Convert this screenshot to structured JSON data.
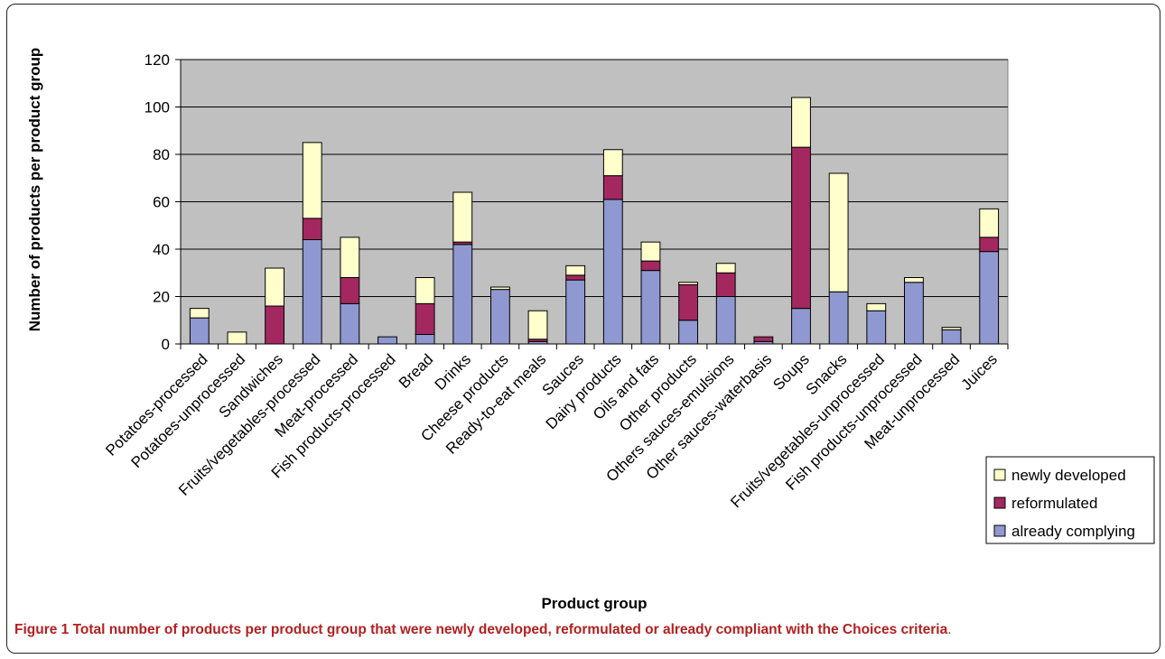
{
  "chart_data": {
    "type": "bar",
    "stacked": true,
    "categories": [
      "Potatoes-processed",
      "Potatoes-unprocessed",
      "Sandwiches",
      "Fruits/vegetables-processed",
      "Meat-processed",
      "Fish products-processed",
      "Bread",
      "Drinks",
      "Cheese products",
      "Ready-to-eat meals",
      "Sauces",
      "Dairy products",
      "Oils and fats",
      "Other products",
      "Others sauces-emulsions",
      "Other sauces-waterbasis",
      "Soups",
      "Snacks",
      "Fruits/vegetables-unprocessed",
      "Fish products-unprocessed",
      "Meat-unprocessed",
      "Juices"
    ],
    "series": [
      {
        "name": "already complying",
        "color": "#8f98d0",
        "values": [
          11,
          0,
          0,
          44,
          17,
          3,
          4,
          42,
          23,
          1,
          27,
          61,
          31,
          10,
          20,
          1,
          15,
          22,
          14,
          26,
          6,
          39
        ]
      },
      {
        "name": "reformulated",
        "color": "#a3285f",
        "values": [
          0,
          0,
          16,
          9,
          11,
          0,
          13,
          1,
          0,
          1,
          2,
          10,
          4,
          15,
          10,
          2,
          68,
          0,
          0,
          0,
          0,
          6
        ]
      },
      {
        "name": "newly developed",
        "color": "#ffffcc",
        "values": [
          4,
          5,
          16,
          32,
          17,
          0,
          11,
          21,
          1,
          12,
          4,
          11,
          8,
          1,
          4,
          0,
          21,
          50,
          3,
          2,
          1,
          12
        ]
      }
    ],
    "xlabel": "Product group",
    "ylabel": "Number of products per product group",
    "ylim": [
      0,
      120
    ],
    "yticks": [
      0,
      20,
      40,
      60,
      80,
      100,
      120
    ],
    "grid": true,
    "legend_position": "bottom-right",
    "plot_background": "#c0c0c0"
  },
  "caption": {
    "label": "Figure 1",
    "bold_text": "Total number of products per product group that were newly developed, reformulated or already compliant with the Choices criteria",
    "end": "."
  }
}
